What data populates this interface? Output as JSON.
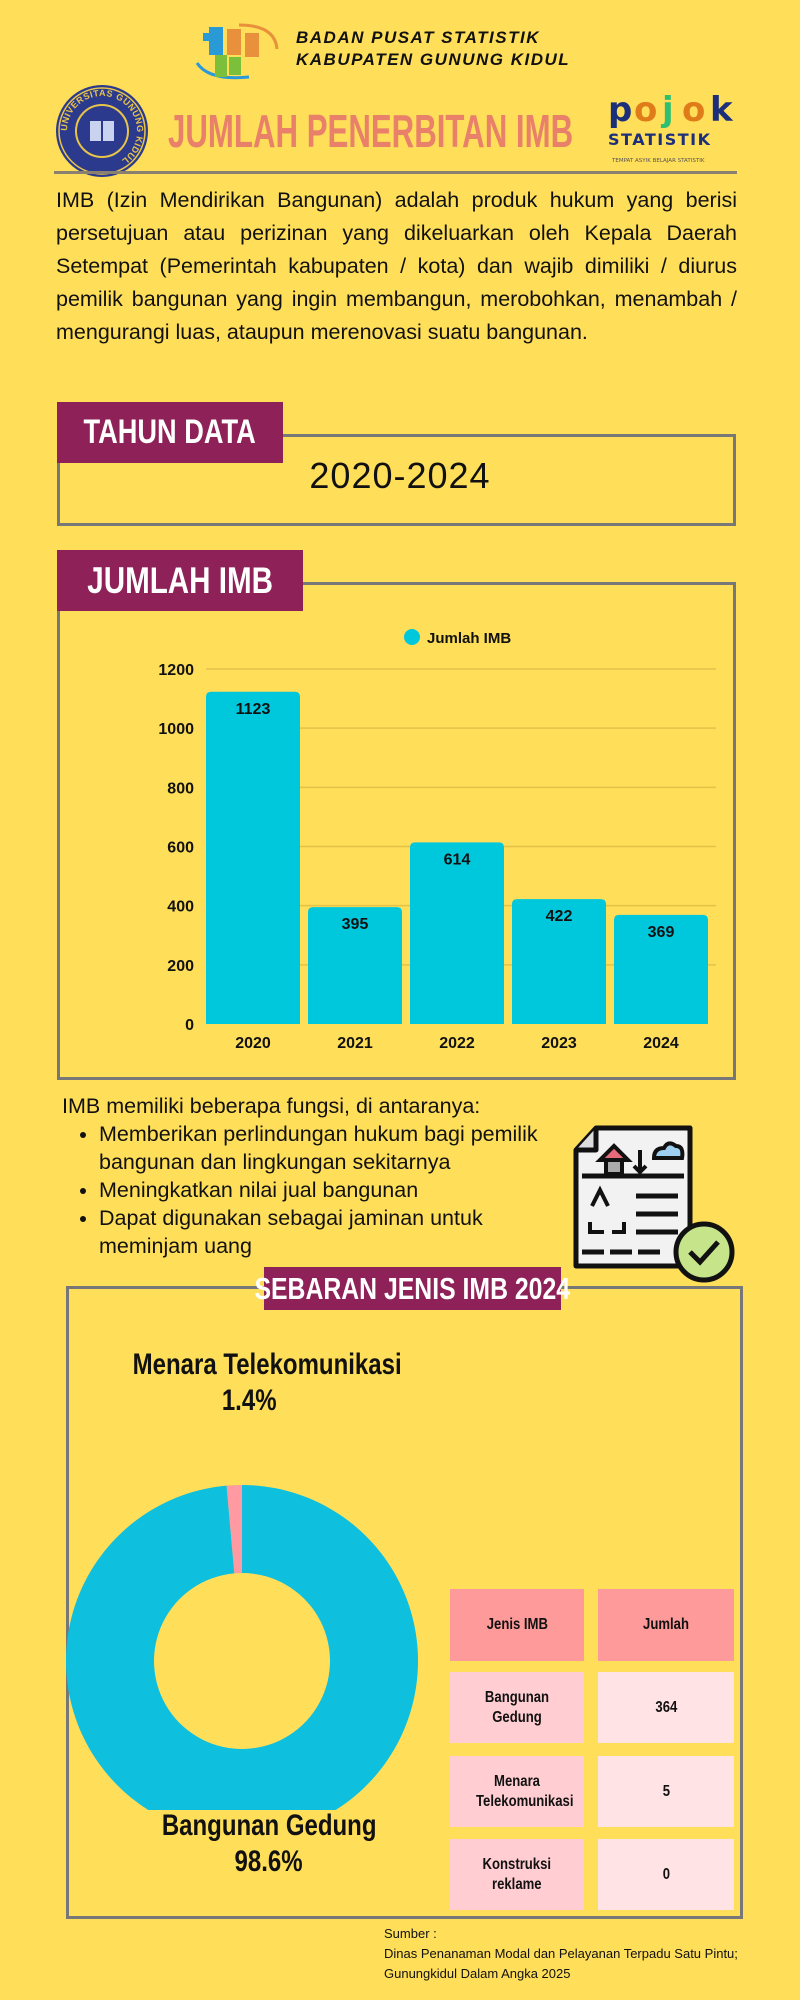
{
  "header": {
    "org_line1": "BADAN PUSAT STATISTIK",
    "org_line2": "KABUPATEN GUNUNG KIDUL",
    "title": "JUMLAH PENERBITAN IMB",
    "univ_logo_text": "UNIVERSITAS GUNUNG KIDUL",
    "pojok_logo_text": "pojok STATISTIK",
    "pojok_tagline": "TEMPAT ASYIK BELAJAR STATISTIK"
  },
  "intro": "IMB (Izin Mendirikan Bangunan) adalah produk hukum yang berisi persetujuan atau perizinan yang dikeluarkan oleh Kepala Daerah Setempat (Pemerintah kabupaten / kota) dan wajib dimiliki / diurus pemilik bangunan yang ingin membangun, merobohkan, menambah / mengurangi luas, ataupun merenovasi suatu bangunan.",
  "tahun_data": {
    "label": "TAHUN DATA",
    "value": "2020-2024"
  },
  "jumlah_section": {
    "label": "JUMLAH IMB"
  },
  "fungsi": {
    "intro": "IMB memiliki beberapa fungsi, di antaranya:",
    "items": [
      "Memberikan perlindungan hukum bagi pemilik bangunan dan lingkungan sekitarnya",
      "Meningkatkan nilai jual bangunan",
      "Dapat digunakan sebagai jaminan untuk meminjam uang"
    ]
  },
  "sebaran_section": {
    "label": "SEBARAN JENIS IMB 2024"
  },
  "table": {
    "headers": [
      "Jenis IMB",
      "Jumlah"
    ],
    "rows": [
      [
        "Bangunan Gedung",
        "364"
      ],
      [
        "Menara Telekomunikasi",
        "5"
      ],
      [
        "Konstruksi reklame",
        "0"
      ]
    ]
  },
  "source": {
    "label": "Sumber :",
    "line1": "Dinas Penanaman Modal dan Pelayanan Terpadu Satu Pintu;",
    "line2": "Gunungkidul Dalam Angka 2025"
  },
  "colors": {
    "background": "#FFDE59",
    "accent": "#8E2157",
    "bar": "#00C8DC",
    "donut_main": "#0EBFDE",
    "donut_minor": "#FF9AA2",
    "title": "#E8806A"
  },
  "chart_data": [
    {
      "type": "bar",
      "categories": [
        "2020",
        "2021",
        "2022",
        "2023",
        "2024"
      ],
      "series": [
        {
          "name": "Jumlah IMB",
          "values": [
            1123,
            395,
            614,
            422,
            369
          ]
        }
      ],
      "ylim": [
        0,
        1200
      ],
      "yticks": [
        0,
        200,
        400,
        600,
        800,
        1000,
        1200
      ],
      "grid": true,
      "legend": "top-center",
      "data_labels": true
    },
    {
      "type": "pie",
      "donut": true,
      "slices": [
        {
          "label": "Menara Telekomunikasi",
          "value": 1.4,
          "display": "1.4%"
        },
        {
          "label": "Bangunan Gedung",
          "value": 98.6,
          "display": "98.6%"
        }
      ]
    }
  ]
}
